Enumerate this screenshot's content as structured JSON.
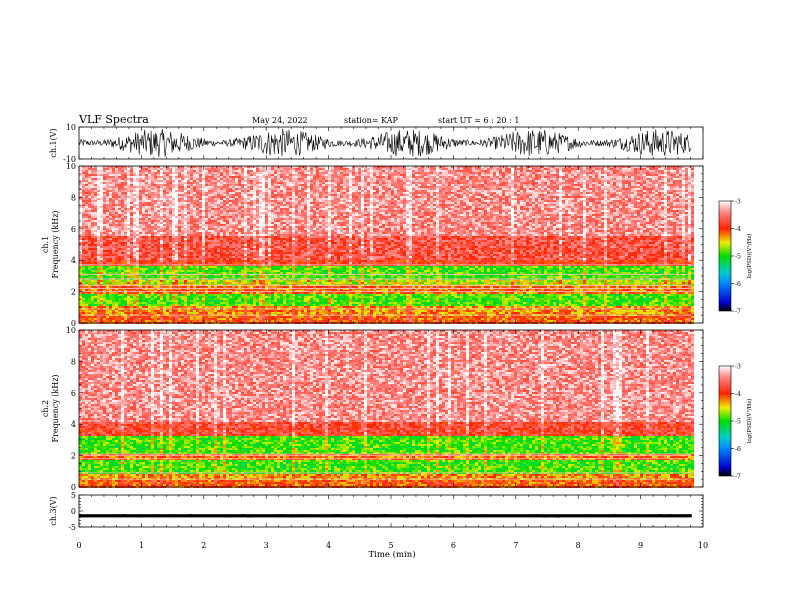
{
  "header": {
    "title": "VLF Spectra",
    "date": "May 24, 2022",
    "station": "station= KAP",
    "start": "start  UT =  6 : 20 : 1"
  },
  "colors": {
    "background": "#ffffff",
    "axes": "#000000",
    "waveform": "#000000",
    "colormap": [
      "#000000",
      "#0000cc",
      "#0088ff",
      "#00cccc",
      "#00dd00",
      "#eeee00",
      "#ff2200",
      "#ff8888",
      "#ffffff"
    ]
  },
  "chart_data": [
    {
      "type": "line",
      "name": "ch1-waveform",
      "ylabel": "ch.1(V)",
      "ylim": [
        -10,
        10
      ],
      "yticks": [
        "10",
        "-10"
      ],
      "xlim": [
        0,
        10
      ],
      "x_data_end": 9.82,
      "typical_range": [
        -9,
        9
      ]
    },
    {
      "type": "heatmap",
      "name": "ch1-spectrogram",
      "ylabel": "ch.1",
      "ylabel2": "Frequency (kHz)",
      "ylim": [
        0,
        10
      ],
      "yticks": [
        "0",
        "2",
        "4",
        "6",
        "8",
        "10"
      ],
      "xlim": [
        0,
        10
      ],
      "x_data_end": 9.82,
      "bands": [
        {
          "f0": 0,
          "f1": 0.5,
          "level": -4.1
        },
        {
          "f0": 0.5,
          "f1": 1.1,
          "level": -4.3
        },
        {
          "f0": 1.1,
          "f1": 1.9,
          "level": -4.9
        },
        {
          "f0": 1.9,
          "f1": 2.3,
          "level": -4.2
        },
        {
          "f0": 2.3,
          "f1": 2.8,
          "level": -4.6
        },
        {
          "f0": 2.8,
          "f1": 3.6,
          "level": -4.9
        },
        {
          "f0": 3.6,
          "f1": 4.0,
          "level": -3.9
        },
        {
          "f0": 4.0,
          "f1": 5.5,
          "level": -3.7
        },
        {
          "f0": 5.5,
          "f1": 10,
          "level": -3.4
        }
      ],
      "lines_khz": [
        0.5,
        0.9,
        2.0,
        2.2,
        2.4,
        2.8,
        3.1,
        3.7
      ],
      "colorbar": {
        "label": "log(PSD)(V²/Hz)",
        "range": [
          -7,
          -3
        ],
        "ticks": [
          "-3",
          "-4",
          "-5",
          "-6",
          "-7"
        ]
      }
    },
    {
      "type": "heatmap",
      "name": "ch2-spectrogram",
      "ylabel": "ch.2",
      "ylabel2": "Frequency (kHz)",
      "ylim": [
        0,
        10
      ],
      "yticks": [
        "0",
        "2",
        "4",
        "6",
        "8",
        "10"
      ],
      "xlim": [
        0,
        10
      ],
      "x_data_end": 9.82,
      "bands": [
        {
          "f0": 0,
          "f1": 0.5,
          "level": -4.1
        },
        {
          "f0": 0.5,
          "f1": 0.8,
          "level": -4.3
        },
        {
          "f0": 0.8,
          "f1": 1.7,
          "level": -4.9
        },
        {
          "f0": 1.7,
          "f1": 2.1,
          "level": -4.2
        },
        {
          "f0": 2.1,
          "f1": 3.2,
          "level": -4.9
        },
        {
          "f0": 3.2,
          "f1": 4.2,
          "level": -3.8
        },
        {
          "f0": 4.2,
          "f1": 10,
          "level": -3.4
        }
      ],
      "lines_khz": [
        0.5,
        0.9,
        1.8,
        2.0,
        2.1
      ],
      "colorbar": {
        "label": "log(PSD)(V²/Hz)",
        "range": [
          -7,
          -3
        ],
        "ticks": [
          "-3",
          "-4",
          "-5",
          "-6",
          "-7"
        ]
      }
    },
    {
      "type": "line",
      "name": "ch3-waveform",
      "ylabel": "ch.3(V)",
      "ylim": [
        -5,
        5
      ],
      "yticks": [
        "5",
        "0",
        "-5"
      ],
      "xlim": [
        0,
        10
      ],
      "x_data_end": 9.82,
      "center": -1.5,
      "typical_range": [
        -2.0,
        -1.0
      ]
    }
  ],
  "xaxis": {
    "label": "Time (min)",
    "ticks": [
      "0",
      "1",
      "2",
      "3",
      "4",
      "5",
      "6",
      "7",
      "8",
      "9",
      "10"
    ]
  }
}
